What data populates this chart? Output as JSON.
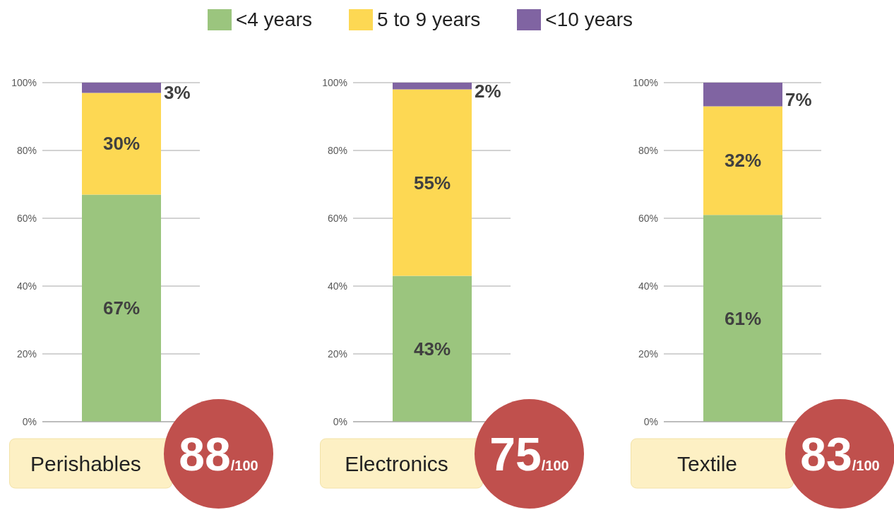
{
  "chart_data": [
    {
      "type": "bar",
      "stacked": true,
      "categories": [
        "Perishables"
      ],
      "ylim": [
        0,
        100
      ],
      "yticks": [
        {
          "value": 0,
          "label": "0%"
        },
        {
          "value": 20,
          "label": "20%"
        },
        {
          "value": 40,
          "label": "40%"
        },
        {
          "value": 60,
          "label": "60%"
        },
        {
          "value": 80,
          "label": "80%"
        },
        {
          "value": 100,
          "label": "100%"
        }
      ],
      "grid": "y",
      "legend": "top",
      "annotations": [
        "88/100"
      ],
      "series": [
        {
          "name": "<4 years",
          "color": "#9bc57e",
          "values": [
            67
          ],
          "value_labels": [
            "67%"
          ]
        },
        {
          "name": "5 to 9 years",
          "color": "#fdd853",
          "values": [
            30
          ],
          "value_labels": [
            "30%"
          ]
        },
        {
          "name": "<10 years",
          "color": "#8064a2",
          "values": [
            3
          ],
          "value_labels": [
            "3%"
          ]
        }
      ]
    },
    {
      "type": "bar",
      "stacked": true,
      "categories": [
        "Electronics"
      ],
      "ylim": [
        0,
        100
      ],
      "yticks": [
        {
          "value": 0,
          "label": "0%"
        },
        {
          "value": 20,
          "label": "20%"
        },
        {
          "value": 40,
          "label": "40%"
        },
        {
          "value": 60,
          "label": "60%"
        },
        {
          "value": 80,
          "label": "80%"
        },
        {
          "value": 100,
          "label": "100%"
        }
      ],
      "grid": "y",
      "annotations": [
        "75/100"
      ],
      "series": [
        {
          "color": "#9bc57e",
          "values": [
            43
          ],
          "value_labels": [
            "43%"
          ]
        },
        {
          "color": "#fdd853",
          "values": [
            55
          ],
          "value_labels": [
            "55%"
          ]
        },
        {
          "color": "#8064a2",
          "values": [
            2
          ],
          "value_labels": [
            "2%"
          ]
        }
      ]
    },
    {
      "type": "bar",
      "stacked": true,
      "categories": [
        "Textile"
      ],
      "ylim": [
        0,
        100
      ],
      "yticks": [
        {
          "value": 0,
          "label": "0%"
        },
        {
          "value": 20,
          "label": "20%"
        },
        {
          "value": 40,
          "label": "40%"
        },
        {
          "value": 60,
          "label": "60%"
        },
        {
          "value": 80,
          "label": "80%"
        },
        {
          "value": 100,
          "label": "100%"
        }
      ],
      "grid": "y",
      "annotations": [
        "83/100"
      ],
      "series": [
        {
          "color": "#9bc57e",
          "values": [
            61
          ],
          "value_labels": [
            "61%"
          ]
        },
        {
          "color": "#fdd853",
          "values": [
            32
          ],
          "value_labels": [
            "32%"
          ]
        },
        {
          "color": "#8064a2",
          "values": [
            7
          ],
          "value_labels": [
            "7%"
          ]
        }
      ]
    }
  ]
}
